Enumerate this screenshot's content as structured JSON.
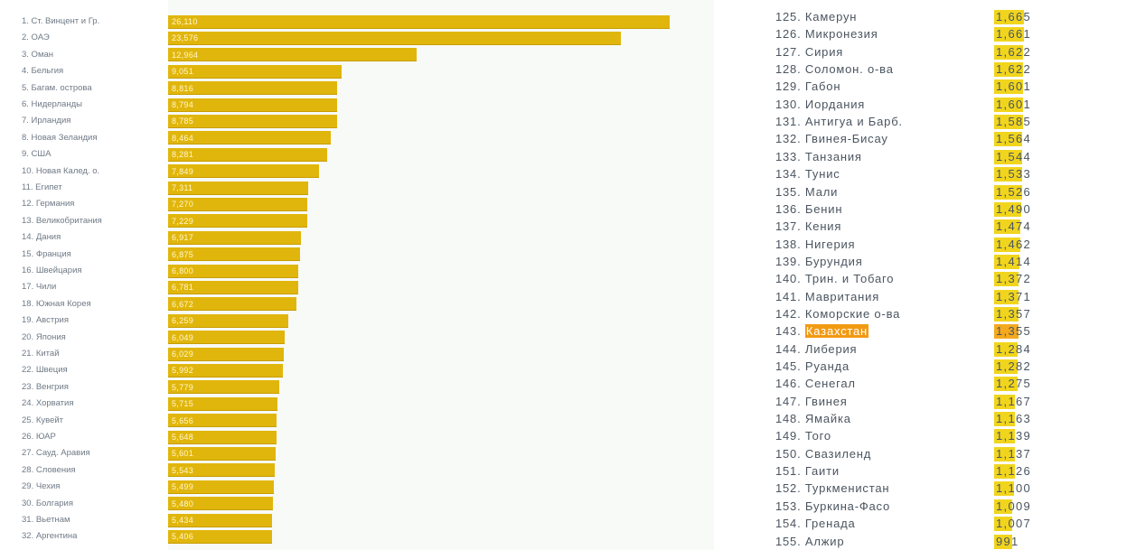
{
  "colors": {
    "bar": "#e1b60c",
    "bar_light": "#f1d51d",
    "highlight": "#f29a12",
    "label": "#4b5560",
    "plot_background": "#f8faf7"
  },
  "chart_data": [
    {
      "type": "bar",
      "orientation": "horizontal",
      "categories": [
        "1. Ст. Винцент и Гр.",
        "2. ОАЭ",
        "3. Оман",
        "4. Бельгия",
        "5. Багам. острова",
        "6. Нидерланды",
        "7. Ирландия",
        "8. Новая Зеландия",
        "9. США",
        "10. Новая Калед. о.",
        "11. Египет",
        "12. Германия",
        "13. Великобритания",
        "14. Дания",
        "15. Франция",
        "16. Швейцария",
        "17. Чили",
        "18. Южная Корея",
        "19. Австрия",
        "20. Япония",
        "21. Китай",
        "22. Швеция",
        "23. Венгрия",
        "24. Хорватия",
        "25. Кувейт",
        "26. ЮАР",
        "27. Сауд. Аравия",
        "28. Словения",
        "29. Чехия",
        "30. Болгария",
        "31. Вьетнам",
        "32. Аргентина"
      ],
      "values": [
        26110,
        23576,
        12964,
        9051,
        8816,
        8794,
        8785,
        8464,
        8281,
        7849,
        7311,
        7270,
        7229,
        6917,
        6875,
        6800,
        6781,
        6672,
        6259,
        6049,
        6029,
        5992,
        5779,
        5715,
        5656,
        5648,
        5601,
        5543,
        5499,
        5480,
        5434,
        5406
      ],
      "value_labels": [
        "26,110",
        "23,576",
        "12,964",
        "9,051",
        "8,816",
        "8,794",
        "8,785",
        "8,464",
        "8,281",
        "7,849",
        "7,311",
        "7,270",
        "7,229",
        "6,917",
        "6,875",
        "6,800",
        "6,781",
        "6,672",
        "6,259",
        "6,049",
        "6,029",
        "5,992",
        "5,779",
        "5,715",
        "5,656",
        "5,648",
        "5,601",
        "5,543",
        "5,499",
        "5,480",
        "5,434",
        "5,406"
      ],
      "xlim": [
        0,
        27300
      ],
      "grid": false,
      "legend": "none",
      "title": "",
      "xlabel": "",
      "ylabel": ""
    },
    {
      "type": "bar",
      "orientation": "horizontal",
      "categories": [
        "125. Камерун",
        "126. Микронезия",
        "127. Сирия",
        "128. Соломон. о-ва",
        "129. Габон",
        "130. Иордания",
        "131. Антигуа и Барб.",
        "132. Гвинея-Бисау",
        "133. Танзания",
        "134. Тунис",
        "135. Мали",
        "136. Бенин",
        "137. Кения",
        "138. Нигерия",
        "139. Бурундия",
        "140. Трин. и Тобаго",
        "141. Мавритания",
        "142. Коморские о-ва",
        "143. Казахстан",
        "144. Либерия",
        "145. Руанда",
        "146. Сенегал",
        "147. Гвинея",
        "148. Ямайка",
        "149. Того",
        "150. Свазиленд",
        "151. Гаити",
        "152. Туркменистан",
        "153. Буркина-Фасо",
        "154. Гренада",
        "155. Алжир"
      ],
      "values": [
        1665,
        1661,
        1622,
        1622,
        1601,
        1601,
        1585,
        1564,
        1544,
        1533,
        1526,
        1490,
        1474,
        1462,
        1414,
        1372,
        1371,
        1357,
        1355,
        1284,
        1282,
        1275,
        1167,
        1163,
        1139,
        1137,
        1126,
        1100,
        1009,
        1007,
        991
      ],
      "value_labels": [
        "1,665",
        "1,661",
        "1,622",
        "1,622",
        "1,601",
        "1,601",
        "1,585",
        "1,564",
        "1,544",
        "1,533",
        "1,526",
        "1,490",
        "1,474",
        "1,462",
        "1,414",
        "1,372",
        "1,371",
        "1,357",
        "1,355",
        "1,284",
        "1,282",
        "1,275",
        "1,167",
        "1,163",
        "1,139",
        "1,137",
        "1,126",
        "1,100",
        "1,009",
        "1,007",
        "991"
      ],
      "highlighted": "143. Казахстан",
      "xlim": [
        0,
        1800
      ],
      "grid": false,
      "legend": "none",
      "title": "",
      "xlabel": "",
      "ylabel": ""
    }
  ]
}
